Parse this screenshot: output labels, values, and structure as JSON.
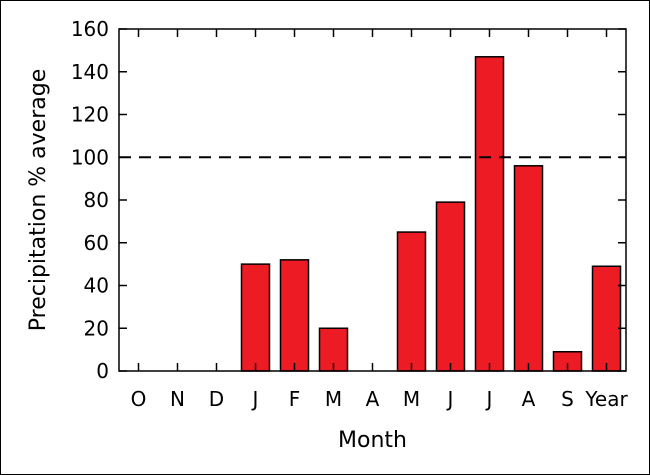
{
  "chart_data": {
    "type": "bar",
    "categories": [
      "O",
      "N",
      "D",
      "J",
      "F",
      "M",
      "A",
      "M",
      "J",
      "J",
      "A",
      "S",
      "Year"
    ],
    "values": [
      0,
      0,
      0,
      50,
      52,
      20,
      0,
      65,
      79,
      147,
      96,
      9,
      49
    ],
    "xlabel": "Month",
    "ylabel": "Precipitation % average",
    "ylim": [
      0,
      160
    ],
    "yticks": [
      0,
      20,
      40,
      60,
      80,
      100,
      120,
      140,
      160
    ],
    "reference_line": {
      "value": 100,
      "style": "dashed"
    },
    "grid": false,
    "legend": "none",
    "bar_color": "#ed1c24",
    "bar_edge_color": "#000000"
  }
}
